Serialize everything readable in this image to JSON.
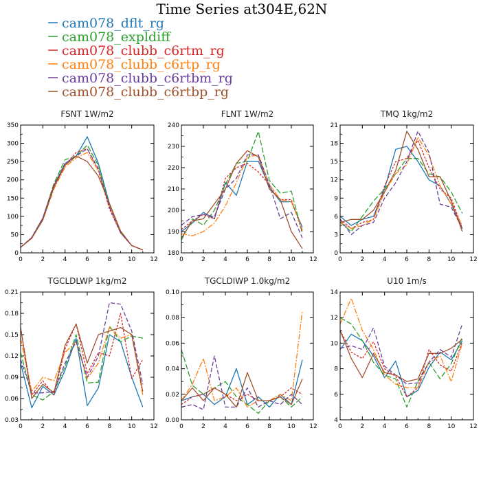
{
  "title": "Time Series at304E,62N",
  "legend": [
    {
      "name": "cam078_dflt_rg",
      "color": "#1f77b4",
      "dash": ""
    },
    {
      "name": "cam078_expldiff",
      "color": "#2ca02c",
      "dash": "8,3"
    },
    {
      "name": "cam078_clubb_c6rtm_rg",
      "color": "#d62728",
      "dash": "3,2"
    },
    {
      "name": "cam078_clubb_c6rtp_rg",
      "color": "#ff7f0e",
      "dash": "8,2,2,2"
    },
    {
      "name": "cam078_clubb_c6rtbm_rg",
      "color": "#6a3d9a",
      "dash": "6,3"
    },
    {
      "name": "cam078_clubb_c6rtbp_rg",
      "color": "#a0522d",
      "dash": ""
    }
  ],
  "chart_data": [
    {
      "type": "line",
      "title": "FSNT   1W/m2",
      "xlim": [
        0,
        12
      ],
      "xticks": [
        0,
        2,
        4,
        6,
        8,
        10,
        12
      ],
      "ylim": [
        0,
        350
      ],
      "yticks": [
        0,
        50,
        100,
        150,
        200,
        250,
        300,
        350
      ],
      "x": [
        0,
        1,
        2,
        3,
        4,
        5,
        6,
        7,
        8,
        9,
        10,
        11
      ],
      "series": [
        [
          15,
          42,
          95,
          185,
          245,
          265,
          318,
          245,
          135,
          58,
          20,
          8
        ],
        [
          15,
          42,
          95,
          190,
          255,
          265,
          295,
          240,
          130,
          55,
          20,
          8
        ],
        [
          15,
          42,
          95,
          185,
          240,
          275,
          285,
          225,
          120,
          55,
          20,
          8
        ],
        [
          15,
          40,
          90,
          175,
          235,
          260,
          275,
          225,
          128,
          58,
          20,
          8
        ],
        [
          15,
          42,
          95,
          185,
          245,
          265,
          285,
          230,
          125,
          55,
          20,
          8
        ],
        [
          15,
          40,
          90,
          180,
          240,
          265,
          250,
          210,
          135,
          60,
          20,
          8
        ]
      ]
    },
    {
      "type": "line",
      "title": "FLNT   1W/m2",
      "xlim": [
        0,
        12
      ],
      "xticks": [
        0,
        2,
        4,
        6,
        8,
        10,
        12
      ],
      "ylim": [
        180,
        240
      ],
      "yticks": [
        180,
        190,
        200,
        210,
        220,
        230,
        240
      ],
      "x": [
        0,
        1,
        2,
        3,
        4,
        5,
        6,
        7,
        8,
        9,
        10,
        11
      ],
      "series": [
        [
          190,
          194,
          199,
          196,
          213,
          207,
          223,
          223,
          211,
          204,
          204,
          192
        ],
        [
          186,
          196,
          193,
          200,
          212,
          222,
          223,
          237,
          214,
          208,
          209,
          189
        ],
        [
          191,
          195,
          198,
          196,
          215,
          220,
          222,
          218,
          212,
          205,
          205,
          190
        ],
        [
          189,
          188,
          190,
          194,
          202,
          213,
          225,
          226,
          212,
          205,
          204,
          191
        ],
        [
          193,
          197,
          198,
          197,
          210,
          215,
          226,
          226,
          212,
          196,
          199,
          187
        ],
        [
          187,
          195,
          196,
          203,
          210,
          222,
          228,
          225,
          210,
          205,
          190,
          182
        ]
      ]
    },
    {
      "type": "line",
      "title": "TMQ   1kg/m2",
      "xlim": [
        0,
        12
      ],
      "xticks": [
        0,
        2,
        4,
        6,
        8,
        10,
        12
      ],
      "ylim": [
        0,
        21
      ],
      "yticks": [
        0,
        3,
        6,
        9,
        12,
        15,
        18,
        21
      ],
      "x": [
        0,
        1,
        2,
        3,
        4,
        5,
        6,
        7,
        8,
        9,
        10,
        11
      ],
      "series": [
        [
          6,
          4.5,
          5.5,
          6,
          10.5,
          17,
          17.5,
          15,
          12,
          11,
          8,
          4
        ],
        [
          5,
          3.5,
          6,
          8.5,
          10.5,
          13,
          15.5,
          15.5,
          13,
          12.5,
          10,
          6.5
        ],
        [
          5.5,
          4,
          5,
          5.5,
          11,
          15,
          15.5,
          18.5,
          14,
          10.5,
          9,
          4
        ],
        [
          5,
          4,
          4.5,
          5.5,
          10,
          13,
          14.5,
          19,
          16,
          11,
          8,
          4.5
        ],
        [
          5.5,
          3,
          4.5,
          5,
          9,
          11.5,
          15,
          20,
          16.5,
          8,
          7.5,
          4
        ],
        [
          5,
          5.5,
          5.5,
          7,
          10,
          13.5,
          20,
          17,
          12.5,
          12.5,
          8.5,
          3.5
        ]
      ]
    },
    {
      "type": "line",
      "title": "TGCLDLWP   1kg/m2",
      "xlim": [
        0,
        12
      ],
      "xticks": [
        0,
        2,
        4,
        6,
        8,
        10,
        12
      ],
      "ylim": [
        0.03,
        0.21
      ],
      "yticks": [
        0.03,
        0.06,
        0.09,
        0.12,
        0.15,
        0.18,
        0.21
      ],
      "x": [
        0,
        1,
        2,
        3,
        4,
        5,
        6,
        7,
        8,
        9,
        10,
        11
      ],
      "series": [
        [
          0.11,
          0.047,
          0.077,
          0.065,
          0.1,
          0.145,
          0.05,
          0.075,
          0.15,
          0.14,
          0.09,
          0.048
        ],
        [
          0.125,
          0.065,
          0.058,
          0.07,
          0.105,
          0.15,
          0.082,
          0.083,
          0.162,
          0.14,
          0.148,
          0.145
        ],
        [
          0.16,
          0.065,
          0.085,
          0.065,
          0.13,
          0.165,
          0.095,
          0.125,
          0.12,
          0.18,
          0.088,
          0.115
        ],
        [
          0.145,
          0.07,
          0.09,
          0.085,
          0.125,
          0.14,
          0.088,
          0.11,
          0.16,
          0.145,
          0.15,
          0.065
        ],
        [
          0.115,
          0.068,
          0.068,
          0.07,
          0.11,
          0.14,
          0.09,
          0.12,
          0.195,
          0.193,
          0.155,
          0.08
        ],
        [
          0.16,
          0.06,
          0.08,
          0.068,
          0.135,
          0.165,
          0.11,
          0.15,
          0.155,
          0.16,
          0.15,
          0.07
        ]
      ]
    },
    {
      "type": "line",
      "title": "TGCLDIWP   1.0kg/m2",
      "xlim": [
        0,
        12
      ],
      "xticks": [
        0,
        2,
        4,
        6,
        8,
        10,
        12
      ],
      "ylim": [
        0,
        0.1
      ],
      "yticks": [
        0.0,
        0.02,
        0.04,
        0.06,
        0.08,
        0.1
      ],
      "x": [
        0,
        1,
        2,
        3,
        4,
        5,
        6,
        7,
        8,
        9,
        10,
        11
      ],
      "series": [
        [
          0.015,
          0.018,
          0.02,
          0.012,
          0.018,
          0.04,
          0.012,
          0.018,
          0.01,
          0.02,
          0.012,
          0.047
        ],
        [
          0.055,
          0.027,
          0.02,
          0.025,
          0.03,
          0.018,
          0.012,
          0.005,
          0.015,
          0.018,
          0.01,
          0.018
        ],
        [
          0.012,
          0.018,
          0.02,
          0.025,
          0.02,
          0.015,
          0.02,
          0.015,
          0.015,
          0.018,
          0.025,
          0.02
        ],
        [
          0.015,
          0.028,
          0.048,
          0.015,
          0.018,
          0.025,
          0.01,
          0.015,
          0.015,
          0.02,
          0.015,
          0.085
        ],
        [
          0.01,
          0.012,
          0.008,
          0.05,
          0.01,
          0.01,
          0.025,
          0.01,
          0.015,
          0.012,
          0.02,
          0.012
        ],
        [
          0.015,
          0.025,
          0.015,
          0.025,
          0.02,
          0.01,
          0.037,
          0.015,
          0.015,
          0.018,
          0.012,
          0.032
        ]
      ]
    },
    {
      "type": "line",
      "title": "U10   1m/s",
      "xlim": [
        0,
        12
      ],
      "xticks": [
        0,
        2,
        4,
        6,
        8,
        10,
        12
      ],
      "ylim": [
        4,
        14
      ],
      "yticks": [
        4,
        6,
        8,
        10,
        12,
        14
      ],
      "x": [
        0,
        1,
        2,
        3,
        4,
        5,
        6,
        7,
        8,
        9,
        10,
        11
      ],
      "series": [
        [
          9.5,
          10.7,
          10.2,
          9,
          7.3,
          8.6,
          5.8,
          6.3,
          8.1,
          9.3,
          8.7,
          10.2
        ],
        [
          12,
          11.5,
          10.2,
          8.5,
          7.5,
          7.2,
          5,
          7,
          8.5,
          7.2,
          8.4,
          10.5
        ],
        [
          11,
          9.3,
          8.8,
          10.1,
          8,
          7.4,
          5.8,
          6.5,
          9.5,
          8.3,
          7.8,
          10.1
        ],
        [
          11.5,
          13.5,
          11,
          9.5,
          7.5,
          6.8,
          6.5,
          6.5,
          8.5,
          9,
          7,
          10
        ],
        [
          9.6,
          9.8,
          9.5,
          11.2,
          8.2,
          7.5,
          6.8,
          6.9,
          8.5,
          9.5,
          8.9,
          11.5
        ],
        [
          11,
          8.8,
          7.3,
          9.2,
          7.7,
          7.5,
          7,
          7.2,
          9.2,
          9.2,
          9.6,
          10.3
        ]
      ]
    }
  ]
}
